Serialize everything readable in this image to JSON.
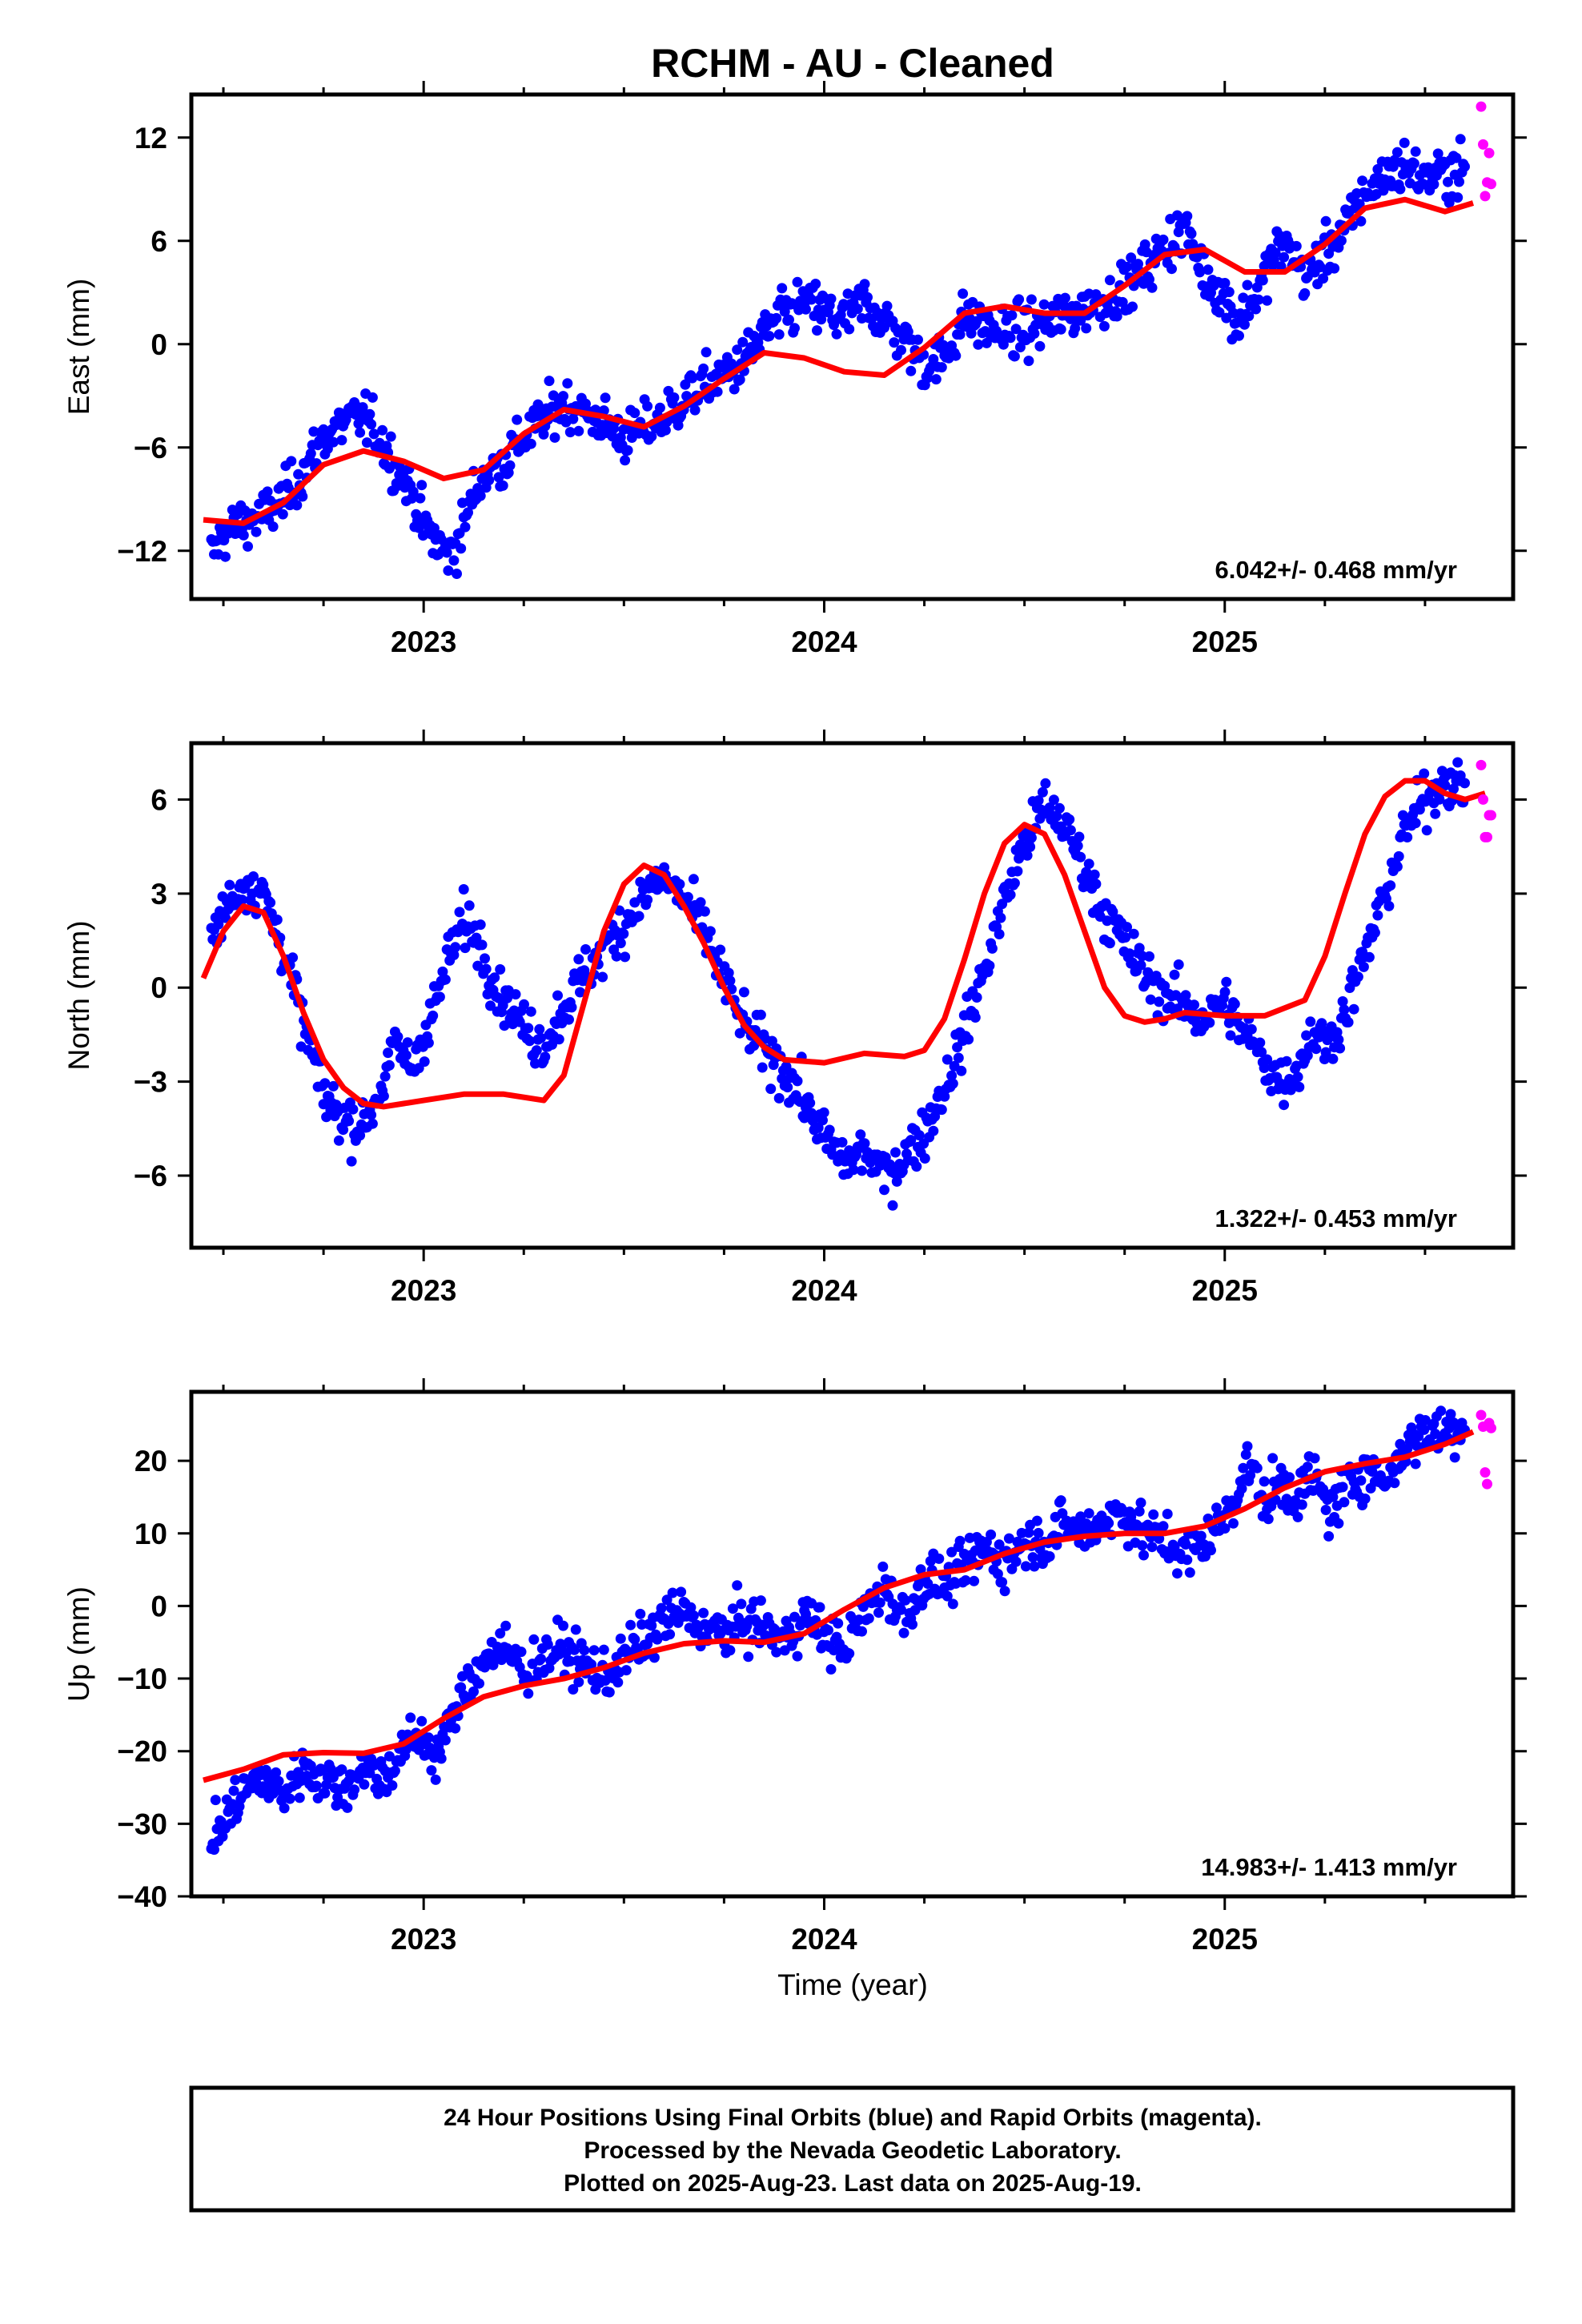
{
  "title": "RCHM  - AU - Cleaned",
  "xlabel": "Time (year)",
  "footer": {
    "line1": "24 Hour Positions Using Final Orbits (blue) and Rapid Orbits (magenta).",
    "line2": "Processed by the Nevada Geodetic Laboratory.",
    "line3": "Plotted on 2025-Aug-23. Last data on 2025-Aug-19."
  },
  "colors": {
    "final": "#0000ff",
    "rapid": "#ff00ff",
    "fit": "#ff0000",
    "frame": "#000000"
  },
  "chart_data": [
    {
      "type": "scatter",
      "component": "east",
      "ylabel": "East (mm)",
      "ylim": [
        -14.8,
        14.5
      ],
      "yticks": [
        -12,
        -6,
        0,
        6,
        12
      ],
      "xlim": [
        2022.42,
        2025.72
      ],
      "xticks": [
        2023,
        2024,
        2025
      ],
      "rate": "6.042+/- 0.468 mm/yr",
      "fit": {
        "x": [
          2022.45,
          2022.55,
          2022.65,
          2022.75,
          2022.85,
          2022.95,
          2023.05,
          2023.15,
          2023.25,
          2023.35,
          2023.45,
          2023.55,
          2023.65,
          2023.75,
          2023.85,
          2023.95,
          2024.05,
          2024.15,
          2024.25,
          2024.35,
          2024.45,
          2024.55,
          2024.65,
          2024.75,
          2024.85,
          2024.95,
          2025.05,
          2025.15,
          2025.25,
          2025.35,
          2025.45,
          2025.55,
          2025.62
        ],
        "y": [
          -10.2,
          -10.4,
          -9.2,
          -7.0,
          -6.2,
          -6.8,
          -7.8,
          -7.3,
          -5.2,
          -3.8,
          -4.2,
          -4.8,
          -3.6,
          -2.0,
          -0.5,
          -0.8,
          -1.6,
          -1.8,
          -0.2,
          1.8,
          2.2,
          1.8,
          1.8,
          3.4,
          5.2,
          5.5,
          4.2,
          4.2,
          5.8,
          7.9,
          8.4,
          7.7,
          8.2
        ]
      },
      "final": {
        "x": [
          2022.47,
          2022.5,
          2022.53,
          2022.56,
          2022.6,
          2022.65,
          2022.7,
          2022.75,
          2022.8,
          2022.85,
          2022.9,
          2022.93,
          2022.97,
          2023.0,
          2023.03,
          2023.06,
          2023.09,
          2023.12,
          2023.15,
          2023.2,
          2023.25,
          2023.3,
          2023.35,
          2023.4,
          2023.45,
          2023.5,
          2023.55,
          2023.6,
          2023.65,
          2023.7,
          2023.75,
          2023.8,
          2023.85,
          2023.9,
          2023.95,
          2024.0,
          2024.05,
          2024.1,
          2024.15,
          2024.2,
          2024.25,
          2024.3,
          2024.35,
          2024.4,
          2024.45,
          2024.5,
          2024.55,
          2024.6,
          2024.65,
          2024.7,
          2024.75,
          2024.8,
          2024.85,
          2024.9,
          2024.95,
          2025.0,
          2025.03,
          2025.06,
          2025.09,
          2025.12,
          2025.16,
          2025.2,
          2025.25,
          2025.3,
          2025.35,
          2025.4,
          2025.45,
          2025.5,
          2025.55,
          2025.6
        ],
        "y": [
          -12.3,
          -11.0,
          -10.6,
          -10.3,
          -10.0,
          -9.0,
          -7.4,
          -5.4,
          -4.6,
          -4.2,
          -5.8,
          -7.2,
          -8.6,
          -10.5,
          -11.5,
          -12.3,
          -11.2,
          -9.0,
          -7.6,
          -6.8,
          -5.4,
          -4.4,
          -3.4,
          -4.0,
          -4.6,
          -5.4,
          -4.9,
          -4.3,
          -3.2,
          -2.4,
          -1.8,
          -1.0,
          0.6,
          1.6,
          2.4,
          1.9,
          1.4,
          2.5,
          1.4,
          0.3,
          -1.2,
          -0.8,
          1.6,
          1.0,
          0.6,
          0.8,
          1.2,
          1.6,
          2.1,
          2.6,
          3.2,
          4.4,
          5.6,
          6.8,
          4.0,
          2.8,
          1.2,
          2.4,
          3.2,
          5.2,
          5.8,
          3.8,
          5.2,
          6.7,
          8.8,
          9.8,
          10.4,
          9.6,
          9.9,
          10.3
        ]
      },
      "rapid": {
        "x": [
          2025.64,
          2025.645,
          2025.65,
          2025.655,
          2025.66,
          2025.665
        ],
        "y": [
          13.8,
          11.6,
          8.6,
          9.4,
          11.1,
          9.3
        ]
      }
    },
    {
      "type": "scatter",
      "component": "north",
      "ylabel": "North (mm)",
      "ylim": [
        -8.3,
        7.8
      ],
      "yticks": [
        -6,
        -3,
        0,
        3,
        6
      ],
      "xlim": [
        2022.42,
        2025.72
      ],
      "xticks": [
        2023,
        2024,
        2025
      ],
      "rate": "1.322+/- 0.453 mm/yr",
      "fit": {
        "x": [
          2022.45,
          2022.5,
          2022.55,
          2022.6,
          2022.65,
          2022.7,
          2022.75,
          2022.8,
          2022.85,
          2022.9,
          2022.95,
          2023.0,
          2023.1,
          2023.2,
          2023.3,
          2023.35,
          2023.4,
          2023.45,
          2023.5,
          2023.55,
          2023.6,
          2023.65,
          2023.7,
          2023.75,
          2023.8,
          2023.85,
          2023.9,
          2024.0,
          2024.1,
          2024.2,
          2024.25,
          2024.3,
          2024.35,
          2024.4,
          2024.45,
          2024.5,
          2024.55,
          2024.6,
          2024.65,
          2024.7,
          2024.75,
          2024.8,
          2024.85,
          2024.9,
          2025.0,
          2025.1,
          2025.2,
          2025.25,
          2025.3,
          2025.35,
          2025.4,
          2025.45,
          2025.5,
          2025.55,
          2025.6,
          2025.65
        ],
        "y": [
          0.3,
          1.8,
          2.6,
          2.4,
          1.0,
          -0.8,
          -2.3,
          -3.2,
          -3.7,
          -3.8,
          -3.7,
          -3.6,
          -3.4,
          -3.4,
          -3.6,
          -2.8,
          -0.5,
          1.8,
          3.3,
          3.9,
          3.6,
          2.6,
          1.4,
          0.0,
          -1.2,
          -1.9,
          -2.3,
          -2.4,
          -2.1,
          -2.2,
          -2.0,
          -1.0,
          0.9,
          3.0,
          4.6,
          5.2,
          4.9,
          3.6,
          1.8,
          0.0,
          -0.9,
          -1.1,
          -1.0,
          -0.8,
          -0.9,
          -0.9,
          -0.4,
          1.0,
          3.0,
          4.9,
          6.1,
          6.6,
          6.6,
          6.2,
          6.0,
          6.2
        ]
      },
      "final": {
        "x": [
          2022.47,
          2022.5,
          2022.53,
          2022.56,
          2022.6,
          2022.65,
          2022.7,
          2022.75,
          2022.8,
          2022.85,
          2022.9,
          2022.93,
          2022.97,
          2023.0,
          2023.03,
          2023.06,
          2023.1,
          2023.14,
          2023.18,
          2023.22,
          2023.26,
          2023.3,
          2023.35,
          2023.4,
          2023.45,
          2023.5,
          2023.55,
          2023.6,
          2023.65,
          2023.7,
          2023.75,
          2023.8,
          2023.85,
          2023.9,
          2023.95,
          2024.0,
          2024.05,
          2024.1,
          2024.15,
          2024.2,
          2024.25,
          2024.3,
          2024.35,
          2024.4,
          2024.45,
          2024.5,
          2024.55,
          2024.6,
          2024.65,
          2024.7,
          2024.75,
          2024.8,
          2024.85,
          2024.9,
          2024.95,
          2025.0,
          2025.03,
          2025.06,
          2025.1,
          2025.14,
          2025.18,
          2025.22,
          2025.26,
          2025.3,
          2025.35,
          2025.4,
          2025.45,
          2025.5,
          2025.55,
          2025.6
        ],
        "y": [
          1.5,
          2.4,
          3.0,
          3.4,
          3.0,
          1.2,
          -1.2,
          -3.4,
          -4.2,
          -4.4,
          -3.0,
          -1.8,
          -2.6,
          -1.5,
          -0.5,
          0.8,
          2.2,
          1.5,
          0.0,
          -0.6,
          -1.5,
          -1.8,
          -0.6,
          0.4,
          1.2,
          2.0,
          3.0,
          3.5,
          2.8,
          1.8,
          0.2,
          -1.2,
          -2.0,
          -2.6,
          -3.6,
          -4.8,
          -5.6,
          -5.2,
          -6.0,
          -5.4,
          -4.6,
          -3.2,
          -1.5,
          0.6,
          2.8,
          4.6,
          5.8,
          5.2,
          3.8,
          2.4,
          1.4,
          0.4,
          -0.2,
          -0.6,
          -1.0,
          -0.4,
          -1.2,
          -1.6,
          -2.4,
          -3.0,
          -2.6,
          -1.4,
          -1.8,
          -0.8,
          1.0,
          3.0,
          5.0,
          6.0,
          6.7,
          6.3
        ]
      },
      "rapid": {
        "x": [
          2025.64,
          2025.645,
          2025.65,
          2025.655,
          2025.66,
          2025.665
        ],
        "y": [
          7.1,
          6.0,
          4.8,
          4.8,
          5.5,
          5.5
        ]
      }
    },
    {
      "type": "scatter",
      "component": "up",
      "ylabel": "Up (mm)",
      "ylim": [
        -40,
        29.5
      ],
      "yticks": [
        -40,
        -30,
        -20,
        -10,
        0,
        10,
        20
      ],
      "xlim": [
        2022.42,
        2025.72
      ],
      "xticks": [
        2023,
        2024,
        2025
      ],
      "rate": "14.983+/- 1.413 mm/yr",
      "fit": {
        "x": [
          2022.45,
          2022.55,
          2022.65,
          2022.75,
          2022.85,
          2022.95,
          2023.05,
          2023.15,
          2023.25,
          2023.35,
          2023.45,
          2023.55,
          2023.65,
          2023.75,
          2023.85,
          2023.95,
          2024.05,
          2024.15,
          2024.25,
          2024.35,
          2024.45,
          2024.55,
          2024.65,
          2024.75,
          2024.85,
          2024.95,
          2025.05,
          2025.15,
          2025.25,
          2025.35,
          2025.45,
          2025.55,
          2025.62
        ],
        "y": [
          -24,
          -22.5,
          -20.5,
          -20.2,
          -20.3,
          -19.0,
          -15.5,
          -12.5,
          -11.0,
          -10.0,
          -8.5,
          -6.5,
          -5.2,
          -4.8,
          -5.0,
          -3.8,
          -0.5,
          2.5,
          4.3,
          5.0,
          7.2,
          8.8,
          9.6,
          10.0,
          10.0,
          11.0,
          13.4,
          16.3,
          18.5,
          19.6,
          20.5,
          22.3,
          24.0
        ]
      },
      "final": {
        "x": [
          2022.47,
          2022.5,
          2022.53,
          2022.56,
          2022.6,
          2022.65,
          2022.7,
          2022.75,
          2022.8,
          2022.85,
          2022.9,
          2022.93,
          2022.97,
          2023.0,
          2023.03,
          2023.06,
          2023.1,
          2023.14,
          2023.18,
          2023.22,
          2023.26,
          2023.3,
          2023.35,
          2023.4,
          2023.45,
          2023.5,
          2023.55,
          2023.6,
          2023.65,
          2023.7,
          2023.75,
          2023.8,
          2023.85,
          2023.9,
          2023.95,
          2024.0,
          2024.05,
          2024.1,
          2024.15,
          2024.2,
          2024.25,
          2024.3,
          2024.35,
          2024.4,
          2024.45,
          2024.5,
          2024.55,
          2024.6,
          2024.65,
          2024.7,
          2024.75,
          2024.8,
          2024.85,
          2024.9,
          2024.95,
          2025.0,
          2025.03,
          2025.06,
          2025.1,
          2025.14,
          2025.18,
          2025.22,
          2025.26,
          2025.3,
          2025.35,
          2025.4,
          2025.45,
          2025.5,
          2025.55,
          2025.6
        ],
        "y": [
          -32,
          -30,
          -27,
          -25,
          -24,
          -26,
          -22,
          -24,
          -25,
          -22,
          -24,
          -21,
          -19,
          -18,
          -21,
          -17,
          -12,
          -8,
          -6,
          -7,
          -9,
          -7,
          -6,
          -8,
          -10,
          -7,
          -5,
          -2,
          -1,
          -3,
          -4,
          -2,
          -3,
          -5,
          -1,
          -4,
          -6,
          -1,
          3,
          -2,
          4,
          3,
          5,
          8,
          6,
          9,
          9,
          11,
          10,
          12,
          13,
          10,
          9,
          7,
          9,
          12,
          16,
          20,
          14,
          17,
          15,
          18,
          13,
          16,
          19,
          17,
          22,
          24,
          24,
          25
        ]
      },
      "rapid": {
        "x": [
          2025.64,
          2025.645,
          2025.65,
          2025.655,
          2025.66,
          2025.665
        ],
        "y": [
          26.3,
          24.7,
          18.4,
          16.8,
          25.2,
          24.5
        ]
      }
    }
  ]
}
